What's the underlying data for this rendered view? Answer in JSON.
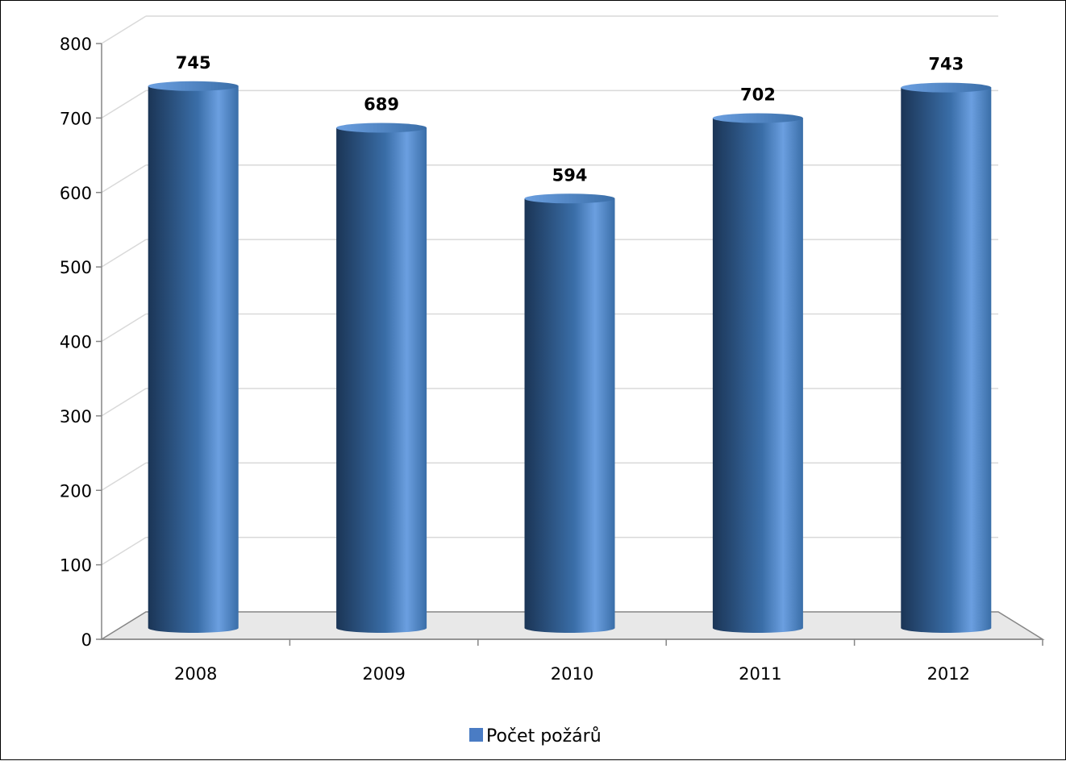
{
  "chart_data": {
    "type": "bar",
    "style": "3d-cylinder",
    "categories": [
      "2008",
      "2009",
      "2010",
      "2011",
      "2012"
    ],
    "series": [
      {
        "name": "Počet požárů",
        "values": [
          745,
          689,
          594,
          702,
          743
        ]
      }
    ],
    "data_labels": [
      "745",
      "689",
      "594",
      "702",
      "743"
    ],
    "ylim": [
      0,
      800
    ],
    "yticks": [
      "0",
      "100",
      "200",
      "300",
      "400",
      "500",
      "600",
      "700",
      "800"
    ],
    "grid": true,
    "legend": {
      "position": "bottom",
      "entries": [
        "Počet požárů"
      ]
    },
    "colors": {
      "bar_dark": "#1b3556",
      "bar_mid": "#3a6ea8",
      "bar_light": "#6b9fe0",
      "legend_swatch": "#4a7cc4",
      "grid": "#d9d9d9",
      "floor": "#e8e8e8",
      "axis": "#868686"
    }
  }
}
